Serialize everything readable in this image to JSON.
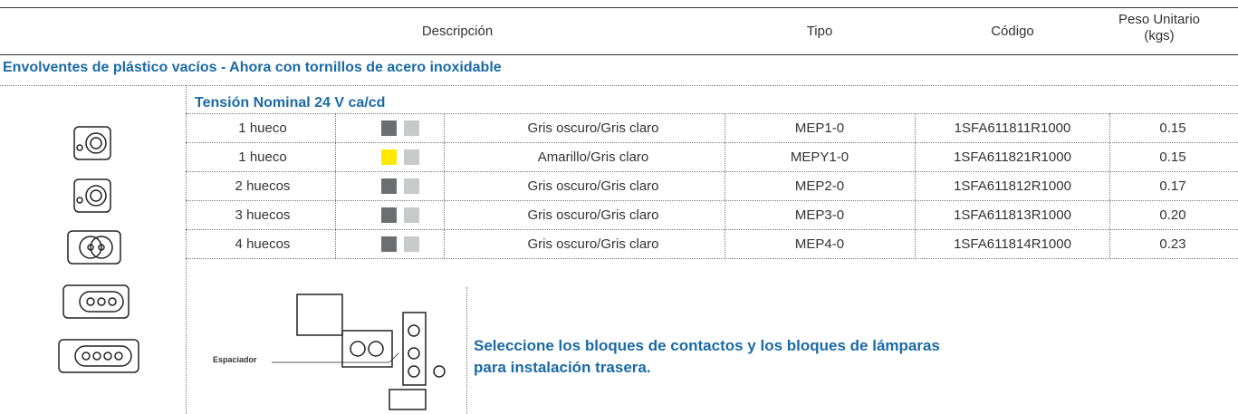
{
  "header": {
    "description": "Descripción",
    "type": "Tipo",
    "code": "Código",
    "weight": "Peso Unitario",
    "weight_unit": "(kgs)"
  },
  "section": "Envolventes de plástico vacíos - Ahora con tornillos de acero inoxidable",
  "subsection": "Tensión Nominal 24 V ca/cd",
  "table": {
    "rows": [
      {
        "holes": "1 hueco",
        "swatches": [
          "#6d6e71",
          "#c8c9cb"
        ],
        "color": "Gris oscuro/Gris claro",
        "type": "MEP1-0",
        "code": "1SFA611811R1000",
        "weight": "0.15"
      },
      {
        "holes": "1 hueco",
        "swatches": [
          "#ffe800",
          "#c8c9cb"
        ],
        "color": "Amarillo/Gris claro",
        "type": "MEPY1-0",
        "code": "1SFA611821R1000",
        "weight": "0.15"
      },
      {
        "holes": "2 huecos",
        "swatches": [
          "#6d6e71",
          "#c8c9cb"
        ],
        "color": "Gris oscuro/Gris claro",
        "type": "MEP2-0",
        "code": "1SFA611812R1000",
        "weight": "0.17"
      },
      {
        "holes": "3 huecos",
        "swatches": [
          "#6d6e71",
          "#c8c9cb"
        ],
        "color": "Gris oscuro/Gris claro",
        "type": "MEP3-0",
        "code": "1SFA611813R1000",
        "weight": "0.20"
      },
      {
        "holes": "4 huecos",
        "swatches": [
          "#6d6e71",
          "#c8c9cb"
        ],
        "color": "Gris oscuro/Gris claro",
        "type": "MEP4-0",
        "code": "1SFA611814R1000",
        "weight": "0.23"
      }
    ]
  },
  "diagram_label": "Espaciador",
  "note": {
    "line1": "Seleccione los bloques de contactos y los bloques de lámparas",
    "line2": "para instalación trasera."
  }
}
